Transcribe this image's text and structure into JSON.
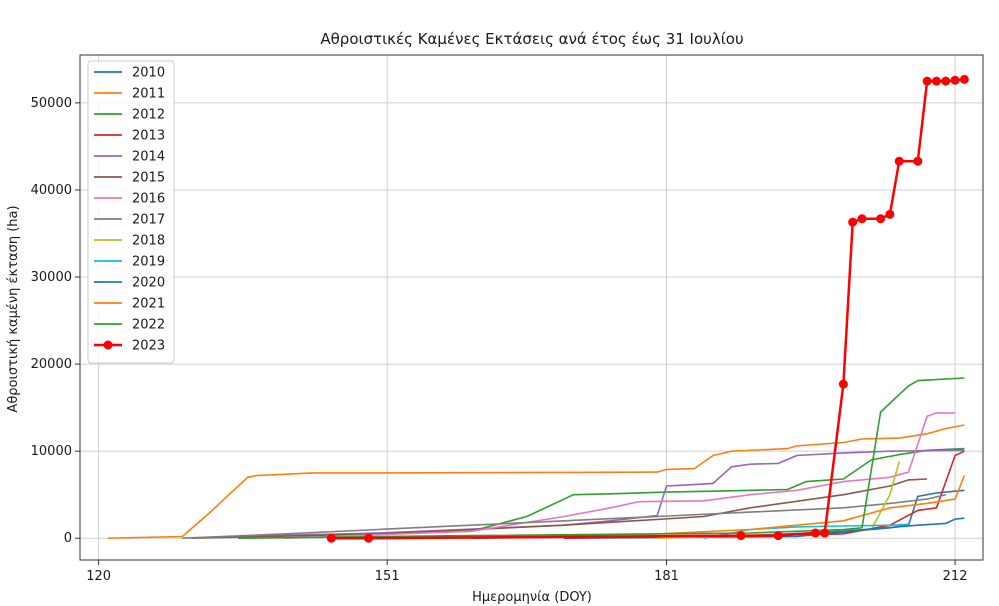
{
  "chart_data": {
    "type": "line",
    "title": "Αθροιστικές Καμένες Εκτάσεις ανά έτος έως 31 Ιουλίου",
    "xlabel": "Ημερομηνία (DOY)",
    "ylabel": "Αθροιστική καμένη έκταση (ha)",
    "xlim": [
      118,
      215
    ],
    "ylim": [
      -2500,
      55500
    ],
    "xticks": [
      120,
      151,
      181,
      212
    ],
    "yticks": [
      0,
      10000,
      20000,
      30000,
      40000,
      50000
    ],
    "grid": true,
    "legend_position": "top-left",
    "series": [
      {
        "name": "2010",
        "color": "#1f77b4",
        "markers": false,
        "points": [
          [
            170,
            0
          ],
          [
            195,
            200
          ],
          [
            205,
            1200
          ],
          [
            207,
            1500
          ],
          [
            208,
            4800
          ],
          [
            210,
            5200
          ],
          [
            212,
            5400
          ],
          [
            213,
            5500
          ]
        ]
      },
      {
        "name": "2011",
        "color": "#ff7f0e",
        "markers": false,
        "points": [
          [
            121,
            0
          ],
          [
            129,
            200
          ],
          [
            132,
            3000
          ],
          [
            136,
            7000
          ],
          [
            137,
            7200
          ],
          [
            139,
            7300
          ],
          [
            143,
            7500
          ],
          [
            150,
            7500
          ],
          [
            180,
            7600
          ],
          [
            181,
            7900
          ],
          [
            184,
            8000
          ],
          [
            186,
            9500
          ],
          [
            188,
            10000
          ],
          [
            194,
            10300
          ],
          [
            195,
            10600
          ],
          [
            200,
            11000
          ],
          [
            202,
            11400
          ],
          [
            206,
            11500
          ],
          [
            209,
            12000
          ],
          [
            211,
            12600
          ],
          [
            213,
            13000
          ]
        ]
      },
      {
        "name": "2012",
        "color": "#2ca02c",
        "markers": false,
        "points": [
          [
            138,
            200
          ],
          [
            160,
            800
          ],
          [
            166,
            2500
          ],
          [
            171,
            5000
          ],
          [
            175,
            5100
          ],
          [
            181,
            5300
          ],
          [
            186,
            5400
          ],
          [
            194,
            5600
          ],
          [
            196,
            6500
          ],
          [
            200,
            6800
          ],
          [
            203,
            9000
          ],
          [
            206,
            9600
          ],
          [
            209,
            10100
          ],
          [
            213,
            10300
          ]
        ]
      },
      {
        "name": "2013",
        "color": "#d62728",
        "markers": false,
        "points": [
          [
            170,
            0
          ],
          [
            200,
            500
          ],
          [
            205,
            1500
          ],
          [
            208,
            3200
          ],
          [
            210,
            3500
          ],
          [
            212,
            9500
          ],
          [
            213,
            10000
          ]
        ]
      },
      {
        "name": "2014",
        "color": "#9467bd",
        "markers": false,
        "points": [
          [
            135,
            200
          ],
          [
            150,
            600
          ],
          [
            170,
            1500
          ],
          [
            175,
            2000
          ],
          [
            180,
            2600
          ],
          [
            181,
            6000
          ],
          [
            183,
            6100
          ],
          [
            186,
            6300
          ],
          [
            188,
            8200
          ],
          [
            190,
            8500
          ],
          [
            193,
            8600
          ],
          [
            195,
            9500
          ],
          [
            200,
            9800
          ],
          [
            205,
            10000
          ],
          [
            213,
            10100
          ]
        ]
      },
      {
        "name": "2015",
        "color": "#8c564b",
        "markers": false,
        "points": [
          [
            130,
            0
          ],
          [
            150,
            500
          ],
          [
            170,
            1500
          ],
          [
            185,
            2500
          ],
          [
            190,
            3500
          ],
          [
            200,
            5000
          ],
          [
            205,
            6000
          ],
          [
            207,
            6700
          ],
          [
            209,
            6800
          ]
        ]
      },
      {
        "name": "2016",
        "color": "#e377c2",
        "markers": false,
        "points": [
          [
            140,
            0
          ],
          [
            160,
            800
          ],
          [
            170,
            2500
          ],
          [
            175,
            3500
          ],
          [
            178,
            4200
          ],
          [
            185,
            4300
          ],
          [
            190,
            5000
          ],
          [
            195,
            5500
          ],
          [
            200,
            6500
          ],
          [
            205,
            7000
          ],
          [
            207,
            7600
          ],
          [
            209,
            14000
          ],
          [
            210,
            14400
          ],
          [
            212,
            14400
          ]
        ]
      },
      {
        "name": "2017",
        "color": "#7f7f7f",
        "markers": false,
        "points": [
          [
            129,
            0
          ],
          [
            140,
            500
          ],
          [
            150,
            1000
          ],
          [
            160,
            1500
          ],
          [
            170,
            2000
          ],
          [
            180,
            2500
          ],
          [
            190,
            3000
          ],
          [
            200,
            3500
          ],
          [
            205,
            4000
          ],
          [
            209,
            4500
          ],
          [
            211,
            5000
          ]
        ]
      },
      {
        "name": "2018",
        "color": "#bcbd22",
        "markers": false,
        "points": [
          [
            180,
            0
          ],
          [
            195,
            500
          ],
          [
            200,
            900
          ],
          [
            203,
            1000
          ],
          [
            205,
            5000
          ],
          [
            206,
            8800
          ]
        ]
      },
      {
        "name": "2019",
        "color": "#17becf",
        "markers": false,
        "points": [
          [
            185,
            0
          ],
          [
            190,
            1000
          ],
          [
            195,
            1300
          ],
          [
            200,
            1400
          ],
          [
            205,
            1500
          ],
          [
            207,
            1600
          ]
        ]
      },
      {
        "name": "2020",
        "color": "#1f77b4",
        "markers": false,
        "points": [
          [
            160,
            0
          ],
          [
            190,
            300
          ],
          [
            200,
            800
          ],
          [
            208,
            1500
          ],
          [
            211,
            1700
          ],
          [
            212,
            2200
          ],
          [
            213,
            2300
          ]
        ]
      },
      {
        "name": "2021",
        "color": "#ff7f0e",
        "markers": false,
        "points": [
          [
            150,
            0
          ],
          [
            180,
            500
          ],
          [
            190,
            1000
          ],
          [
            200,
            2000
          ],
          [
            205,
            3500
          ],
          [
            209,
            4000
          ],
          [
            212,
            4500
          ],
          [
            213,
            7200
          ]
        ]
      },
      {
        "name": "2022",
        "color": "#2ca02c",
        "markers": false,
        "points": [
          [
            135,
            0
          ],
          [
            160,
            300
          ],
          [
            190,
            600
          ],
          [
            200,
            1000
          ],
          [
            202,
            1200
          ],
          [
            204,
            14500
          ],
          [
            206,
            16500
          ],
          [
            207,
            17500
          ],
          [
            208,
            18100
          ],
          [
            213,
            18400
          ]
        ]
      },
      {
        "name": "2023",
        "color": "#ff0000",
        "markers": true,
        "points": [
          [
            145,
            0
          ],
          [
            149,
            0
          ],
          [
            189,
            300
          ],
          [
            193,
            300
          ],
          [
            197,
            600
          ],
          [
            198,
            600
          ],
          [
            200,
            17700
          ],
          [
            201,
            36300
          ],
          [
            202,
            36700
          ],
          [
            204,
            36700
          ],
          [
            205,
            37200
          ],
          [
            206,
            43300
          ],
          [
            208,
            43300
          ],
          [
            209,
            52500
          ],
          [
            210,
            52500
          ],
          [
            211,
            52500
          ],
          [
            212,
            52600
          ],
          [
            213,
            52700
          ]
        ]
      }
    ]
  }
}
